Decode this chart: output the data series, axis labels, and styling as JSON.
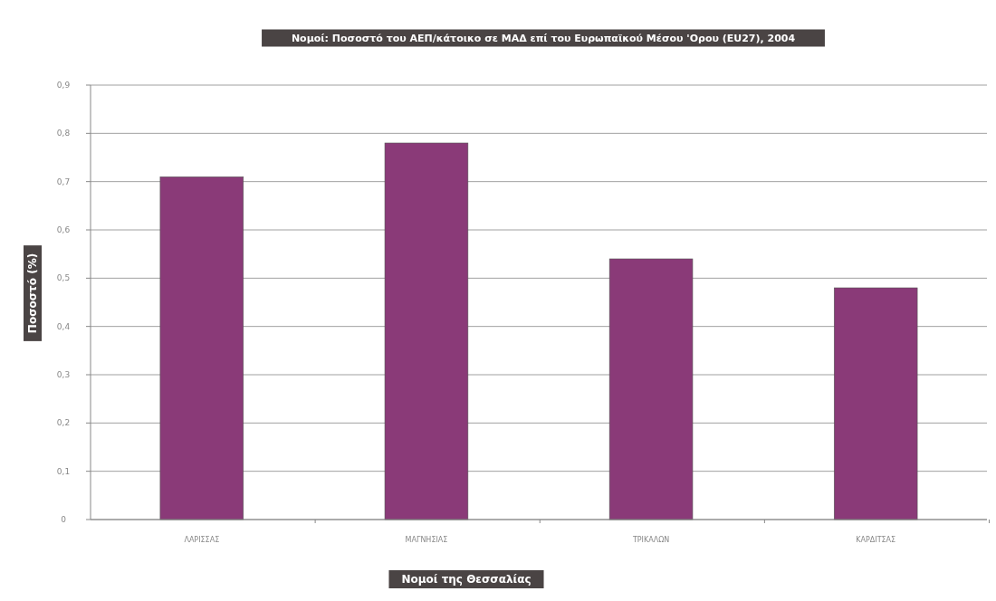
{
  "chart_data": {
    "type": "bar",
    "title": "Νομοί: Ποσοστό του ΑΕΠ/κάτοικο σε ΜΑΔ επί του Ευρωπαϊκού Μέσου 'Ορου (EU27), 2004",
    "xlabel": "Νομοί της Θεσσαλίας",
    "ylabel": "Ποσοστό (%)",
    "categories": [
      "ΛΑΡΙΣΣΑΣ",
      "ΜΑΓΝΗΣΙΑΣ",
      "ΤΡΙΚΑΛΩΝ",
      "ΚΑΡΔΙΤΣΑΣ"
    ],
    "values": [
      0.71,
      0.78,
      0.54,
      0.48
    ],
    "color": "#8a3a78",
    "ylim": [
      0,
      0.9
    ],
    "yticks": [
      0,
      {
        "value": 0.1,
        "label": "0,1"
      },
      {
        "value": 0.2,
        "label": "0,2"
      },
      {
        "value": 0.3,
        "label": "0,3"
      },
      {
        "value": 0.4,
        "label": "0,4"
      },
      {
        "value": 0.5,
        "label": "0,5"
      },
      {
        "value": 0.6,
        "label": "0,6"
      },
      {
        "value": 0.7,
        "label": "0,7"
      },
      {
        "value": 0.8,
        "label": "0,8"
      },
      {
        "value": 0.9,
        "label": "0,9"
      }
    ],
    "grid": "y"
  }
}
